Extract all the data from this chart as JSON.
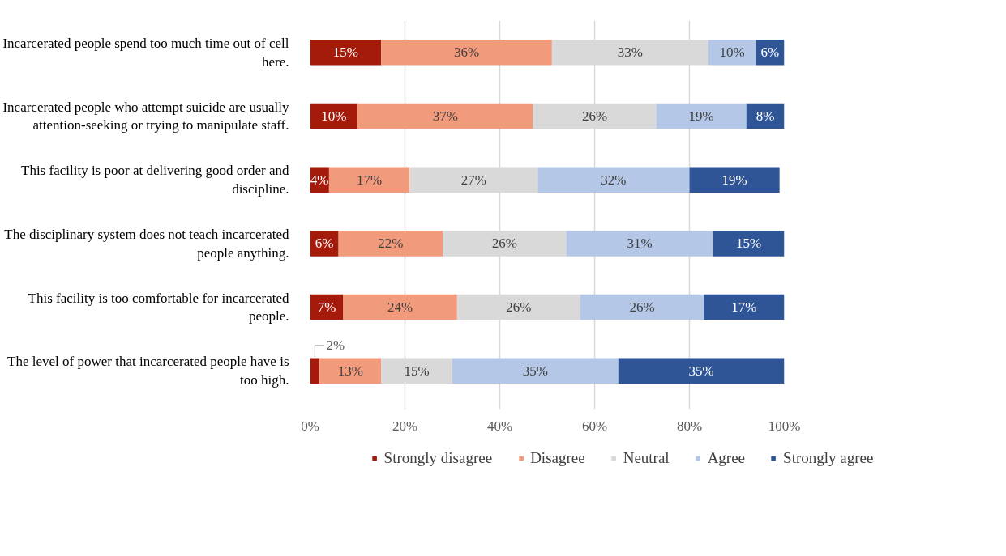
{
  "chart_data": {
    "type": "bar",
    "orientation": "horizontal",
    "stacked": true,
    "categories": [
      "Incarcerated people spend too much time out of cell here.",
      "Incarcerated people who attempt suicide are usually attention-seeking or trying to manipulate staff.",
      "This facility is poor at delivering good order and discipline.",
      "The disciplinary system does not teach incarcerated people anything.",
      "This facility is too comfortable for incarcerated people.",
      "The level of power that incarcerated people have is too high."
    ],
    "series": [
      {
        "name": "Strongly disagree",
        "color": "#a51b0b",
        "values": [
          15,
          10,
          4,
          6,
          7,
          2
        ],
        "value_labels": [
          "15%",
          "10%",
          "4%",
          "6%",
          "7%",
          "2%"
        ]
      },
      {
        "name": "Disagree",
        "color": "#f29b7c",
        "values": [
          36,
          37,
          17,
          22,
          24,
          13
        ],
        "value_labels": [
          "36%",
          "37%",
          "17%",
          "22%",
          "24%",
          "13%"
        ]
      },
      {
        "name": "Neutral",
        "color": "#d9d9d9",
        "values": [
          33,
          26,
          27,
          26,
          26,
          15
        ],
        "value_labels": [
          "33%",
          "26%",
          "27%",
          "26%",
          "26%",
          "15%"
        ]
      },
      {
        "name": "Agree",
        "color": "#b4c7e7",
        "values": [
          10,
          19,
          32,
          31,
          26,
          35
        ],
        "value_labels": [
          "10%",
          "19%",
          "32%",
          "31%",
          "26%",
          "35%"
        ]
      },
      {
        "name": "Strongly agree",
        "color": "#2f5597",
        "values": [
          6,
          8,
          19,
          15,
          17,
          35
        ],
        "value_labels": [
          "6%",
          "8%",
          "19%",
          "15%",
          "17%",
          "35%"
        ]
      }
    ],
    "xlim": [
      0,
      100
    ],
    "xticks": [
      {
        "value": 0,
        "label": "0%"
      },
      {
        "value": 20,
        "label": "20%"
      },
      {
        "value": 40,
        "label": "40%"
      },
      {
        "value": 60,
        "label": "60%"
      },
      {
        "value": 80,
        "label": "80%"
      },
      {
        "value": 100,
        "label": "100%"
      }
    ],
    "grid": "x",
    "legend": "bottom"
  }
}
